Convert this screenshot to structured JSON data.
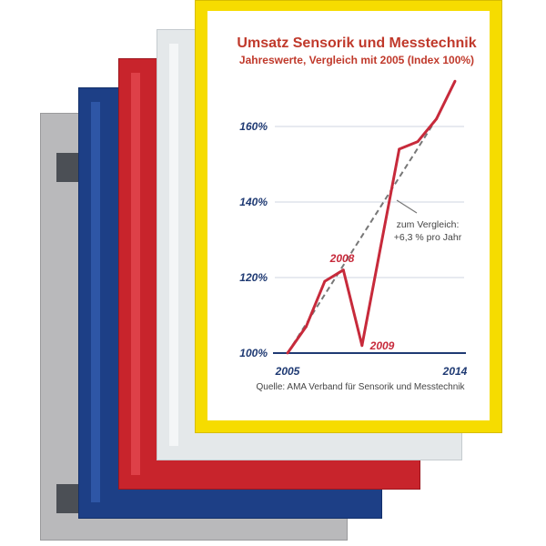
{
  "colors": {
    "frame_gray": "#b9b9bb",
    "frame_blue": "#1d3f86",
    "frame_red": "#c8242c",
    "frame_white": "#e4e8ea",
    "frame_yellow": "#f6dc00",
    "title": "#c0392b",
    "axis": "#1f3a73",
    "series": "#c72a3b",
    "trend": "#777777"
  },
  "chart_data": {
    "type": "line",
    "title": "Umsatz Sensorik und Messtechnik",
    "subtitle": "Jahreswerte, Vergleich mit 2005 (Index 100%)",
    "x_ticks": [
      "2005",
      "2014"
    ],
    "y_ticks": [
      "100%",
      "120%",
      "140%",
      "160%"
    ],
    "xlim": [
      2005,
      2014
    ],
    "ylim": [
      100,
      172
    ],
    "grid": true,
    "series": [
      {
        "values": [
          {
            "x": 2005,
            "y": 100
          },
          {
            "x": 2006,
            "y": 107
          },
          {
            "x": 2007,
            "y": 119
          },
          {
            "x": 2008,
            "y": 122
          },
          {
            "x": 2009,
            "y": 102
          },
          {
            "x": 2010,
            "y": 128
          },
          {
            "x": 2011,
            "y": 154
          },
          {
            "x": 2012,
            "y": 156
          },
          {
            "x": 2013,
            "y": 162
          },
          {
            "x": 2014,
            "y": 172
          }
        ]
      }
    ],
    "trend": {
      "from": {
        "x": 2005,
        "y": 100
      },
      "to": {
        "x": 2013,
        "y": 162
      }
    },
    "annotations": {
      "year_2008": "2008",
      "year_2009": "2009",
      "trend_line1": "zum Vergleich:",
      "trend_line2": "+6,3 % pro Jahr"
    },
    "source": "Quelle: AMA Verband für Sensorik und Messtechnik"
  }
}
